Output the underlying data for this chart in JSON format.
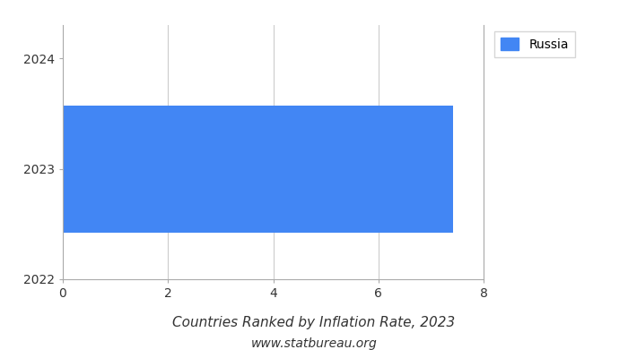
{
  "title": "Countries Ranked by Inflation Rate, 2023",
  "subtitle": "www.statbureau.org",
  "categories": [
    2023
  ],
  "values": [
    7.42
  ],
  "bar_color": "#4286f4",
  "legend_label": "Russia",
  "xlim": [
    0,
    8
  ],
  "ylim": [
    2022.0,
    2024.3
  ],
  "xticks": [
    0,
    2,
    4,
    6,
    8
  ],
  "yticks": [
    2022,
    2023,
    2024
  ],
  "bar_height": 1.15,
  "title_fontsize": 11,
  "subtitle_fontsize": 10,
  "tick_fontsize": 10,
  "legend_fontsize": 10,
  "grid_color": "#cccccc",
  "axis_color": "#aaaaaa",
  "text_color": "#333333"
}
